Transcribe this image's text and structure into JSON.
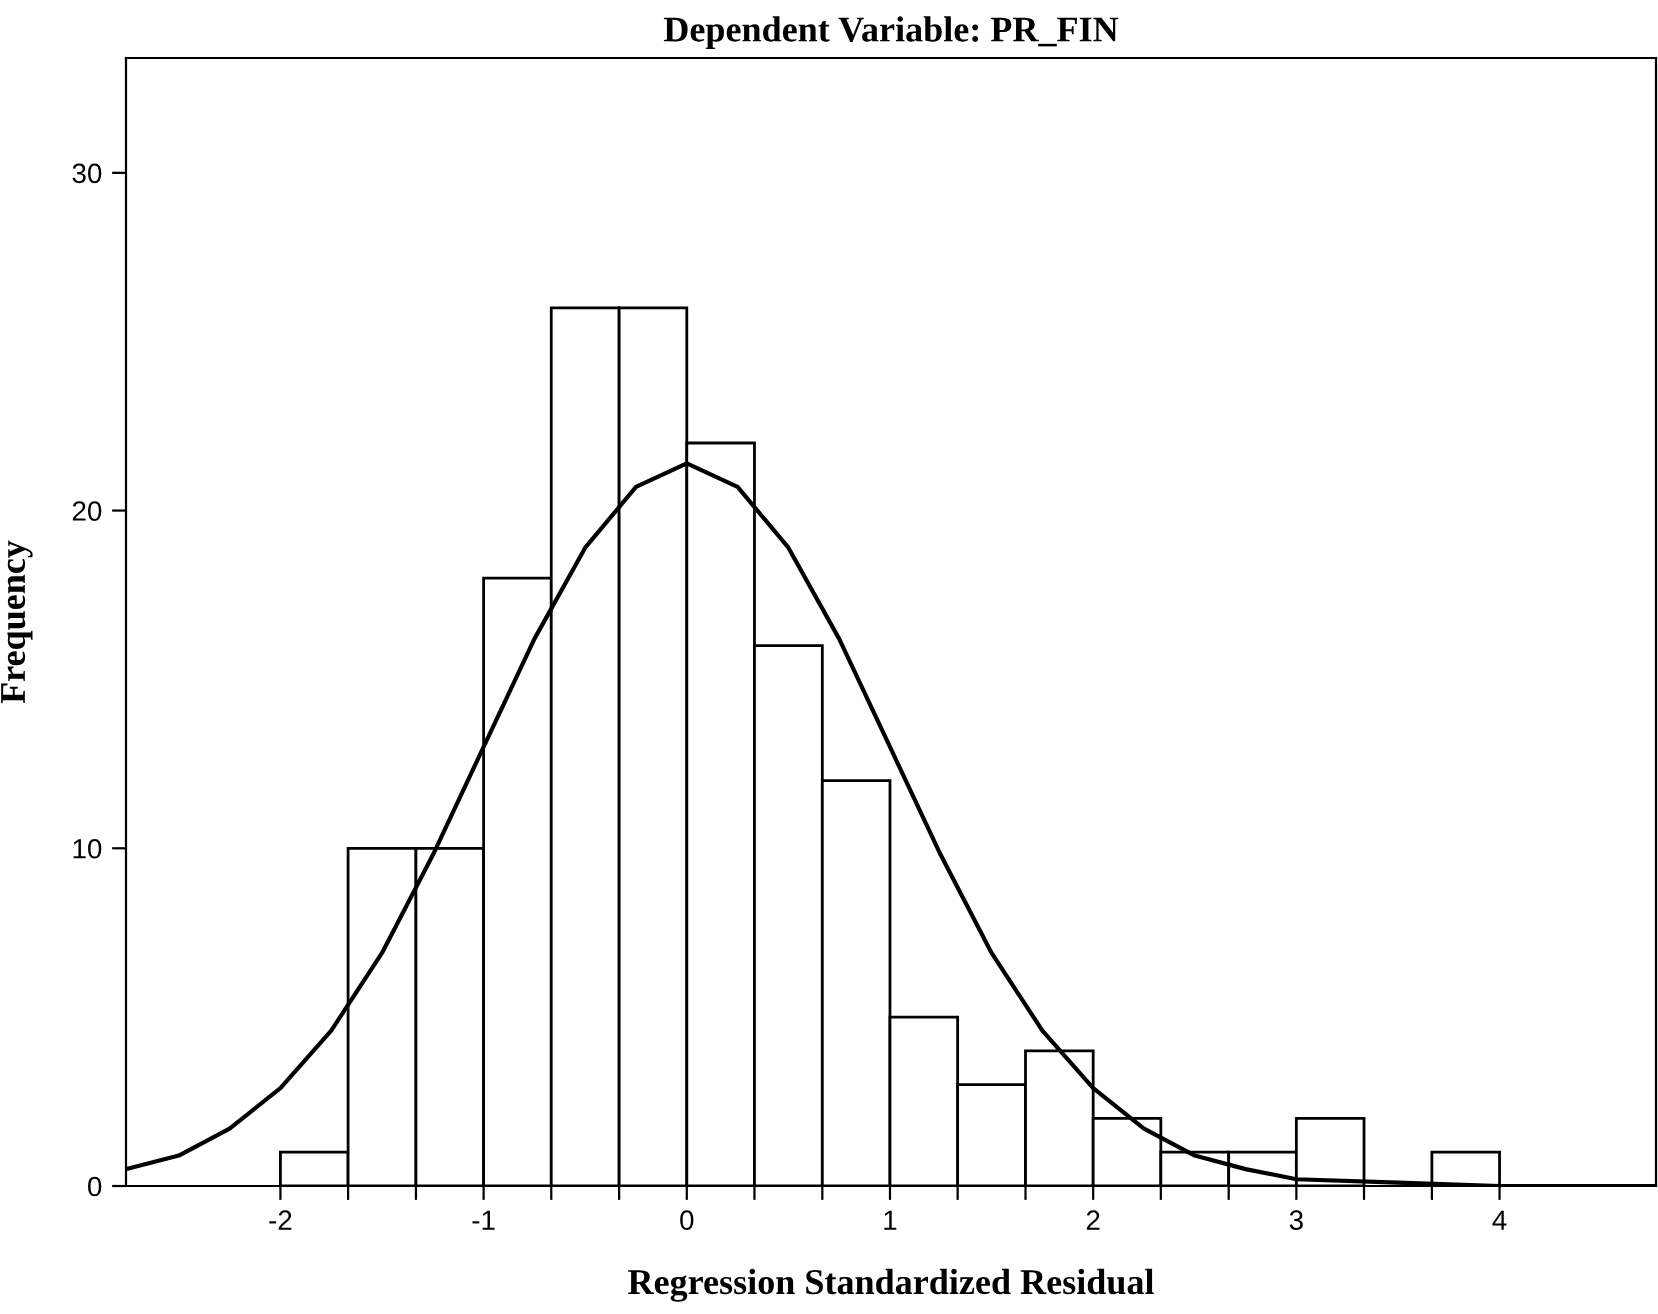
{
  "chart_data": {
    "type": "histogram",
    "title": "Dependent Variable: PR_FIN",
    "xlabel": "Regression Standardized Residual",
    "ylabel": "Frequency",
    "bins": [
      -2,
      -1.667,
      -1.333,
      -1,
      -0.667,
      -0.333,
      0,
      0.333,
      0.667,
      1,
      1.333,
      1.667,
      2,
      2.333,
      2.667,
      3,
      3.333,
      3.667,
      4
    ],
    "values": [
      1,
      10,
      10,
      18,
      26,
      26,
      22,
      16,
      12,
      5,
      3,
      4,
      2,
      1,
      1,
      2,
      0,
      1
    ],
    "color": "#ffffff",
    "series": [
      {
        "type": "line",
        "color": "#000000",
        "x": [
          -2.76,
          -2.5,
          -2.25,
          -2,
          -1.75,
          -1.5,
          -1.25,
          -1,
          -0.75,
          -0.5,
          -0.25,
          0,
          0.25,
          0.5,
          0.75,
          1,
          1.25,
          1.5,
          1.75,
          2,
          2.25,
          2.5,
          2.75,
          3,
          3.5,
          4,
          4.77
        ],
        "values": [
          0.5,
          0.9,
          1.7,
          2.9,
          4.6,
          6.9,
          9.8,
          13.0,
          16.2,
          18.9,
          20.7,
          21.4,
          20.7,
          18.9,
          16.2,
          13.0,
          9.8,
          6.9,
          4.6,
          2.9,
          1.7,
          0.9,
          0.5,
          0.2,
          0.1,
          0,
          0
        ]
      }
    ],
    "xlim": [
      -2.76,
      4.77
    ],
    "ylim": [
      0,
      33.4
    ],
    "xticks": [
      {
        "value": -2,
        "label": "-2"
      },
      {
        "value": -1.667,
        "label": null
      },
      {
        "value": -1.333,
        "label": null
      },
      {
        "value": -1,
        "label": "-1"
      },
      {
        "value": -0.667,
        "label": null
      },
      {
        "value": -0.333,
        "label": null
      },
      0,
      {
        "value": 0.333,
        "label": null
      },
      {
        "value": 0.667,
        "label": null
      },
      1,
      {
        "value": 1.333,
        "label": null
      },
      {
        "value": 1.667,
        "label": null
      },
      2,
      {
        "value": 2.333,
        "label": null
      },
      {
        "value": 2.667,
        "label": null
      },
      3,
      {
        "value": 3.333,
        "label": null
      },
      {
        "value": 3.667,
        "label": null
      },
      4
    ],
    "yticks": [
      0,
      10,
      20,
      30
    ],
    "grid": false,
    "legend": false
  }
}
